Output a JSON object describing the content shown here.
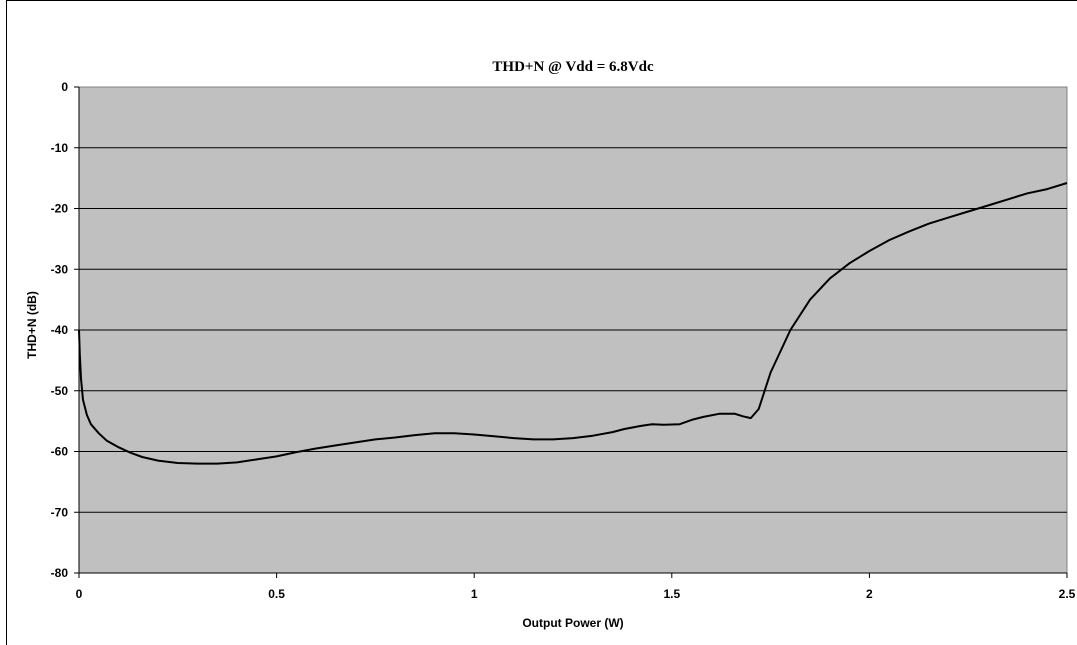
{
  "chart_data": {
    "type": "line",
    "title": "THD+N @ Vdd = 6.8Vdc",
    "xlabel": "Output Power (W)",
    "ylabel": "THD+N (dB)",
    "xlim": [
      0,
      2.5
    ],
    "ylim": [
      -80,
      0
    ],
    "x_ticks": [
      0,
      0.5,
      1,
      1.5,
      2,
      2.5
    ],
    "x_tick_labels": [
      "0",
      "0.5",
      "1",
      "1.5",
      "2",
      "2.5"
    ],
    "y_ticks": [
      0,
      -10,
      -20,
      -30,
      -40,
      -50,
      -60,
      -70,
      -80
    ],
    "y_tick_labels": [
      "0",
      "-10",
      "-20",
      "-30",
      "-40",
      "-50",
      "-60",
      "-70",
      "-80"
    ],
    "grid": "horizontal",
    "plot_background": "#c0c0c0",
    "line_color": "#000000",
    "series": [
      {
        "x": [
          0.0,
          0.002,
          0.005,
          0.01,
          0.02,
          0.03,
          0.05,
          0.07,
          0.1,
          0.13,
          0.16,
          0.2,
          0.25,
          0.3,
          0.35,
          0.4,
          0.45,
          0.5,
          0.55,
          0.6,
          0.65,
          0.7,
          0.75,
          0.8,
          0.85,
          0.9,
          0.95,
          1.0,
          1.05,
          1.1,
          1.15,
          1.2,
          1.25,
          1.3,
          1.35,
          1.38,
          1.42,
          1.45,
          1.48,
          1.52,
          1.55,
          1.58,
          1.62,
          1.66,
          1.68,
          1.7,
          1.72,
          1.75,
          1.8,
          1.85,
          1.9,
          1.95,
          2.0,
          2.05,
          2.1,
          2.15,
          2.2,
          2.25,
          2.3,
          2.35,
          2.4,
          2.45,
          2.5
        ],
        "y": [
          -40,
          -44,
          -48,
          -51.5,
          -54,
          -55.5,
          -57,
          -58.2,
          -59.3,
          -60.2,
          -60.9,
          -61.5,
          -61.9,
          -62,
          -62,
          -61.8,
          -61.3,
          -60.8,
          -60.1,
          -59.5,
          -59,
          -58.5,
          -58,
          -57.7,
          -57.3,
          -57,
          -57,
          -57.2,
          -57.5,
          -57.8,
          -58,
          -58,
          -57.8,
          -57.4,
          -56.8,
          -56.3,
          -55.8,
          -55.5,
          -55.6,
          -55.5,
          -54.8,
          -54.3,
          -53.8,
          -53.8,
          -54.2,
          -54.5,
          -53,
          -47,
          -40,
          -35,
          -31.5,
          -29,
          -27,
          -25.2,
          -23.8,
          -22.5,
          -21.5,
          -20.5,
          -19.5,
          -18.5,
          -17.5,
          -16.8,
          -15.8
        ]
      }
    ]
  }
}
